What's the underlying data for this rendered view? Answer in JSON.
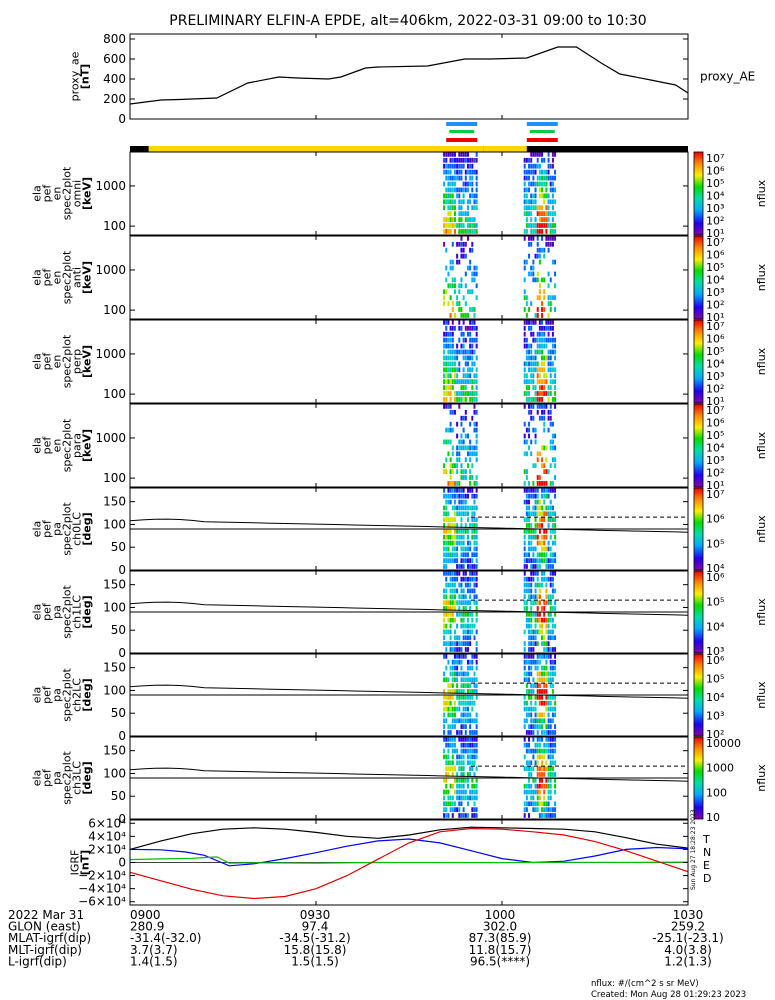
{
  "title": "PRELIMINARY ELFIN-A EPDE, alt=406km, 2022-03-31 09:00 to 10:30",
  "chart_data": {
    "type": "line",
    "time_range": [
      "09:00",
      "10:30"
    ],
    "x_ticks": [
      "0900",
      "0930",
      "1000",
      "1030"
    ],
    "x_tick_minutes": [
      0,
      30,
      60,
      90
    ],
    "panels": [
      {
        "kind": "line",
        "ylabel": [
          "proxy_ae",
          "[nT]"
        ],
        "ylim": [
          0,
          850
        ],
        "yticks": [
          0,
          200,
          400,
          600,
          800
        ],
        "legend": "proxy_AE",
        "series": [
          {
            "name": "proxy_AE",
            "x": [
              0,
              5,
              8,
              14,
              19,
              24,
              27,
              32,
              34,
              38,
              40,
              48,
              54,
              58,
              64,
              69,
              72,
              74,
              76,
              79,
              84,
              88,
              90
            ],
            "values": [
              150,
              190,
              195,
              210,
              360,
              420,
              410,
              400,
              420,
              510,
              520,
              530,
              600,
              600,
              610,
              720,
              720,
              640,
              560,
              450,
              390,
              340,
              260
            ]
          }
        ]
      },
      {
        "kind": "spectrogram",
        "ylabel": [
          "ela",
          "pef",
          "en",
          "spec2plot",
          "omni",
          "[keV]"
        ],
        "ylim": [
          60,
          7000
        ],
        "log": true,
        "yticks": [
          100,
          1000
        ],
        "ytick_labels": [
          "100",
          "1000"
        ],
        "colorbar": {
          "label": "nflux",
          "ticks": [
            "10⁷",
            "10⁶",
            "10⁵",
            "10⁴",
            "10³",
            "10²",
            "10¹"
          ]
        }
      },
      {
        "kind": "spectrogram",
        "ylabel": [
          "ela",
          "pef",
          "en",
          "spec2plot",
          "anti",
          "[keV]"
        ],
        "ylim": [
          60,
          7000
        ],
        "log": true,
        "yticks": [
          100,
          1000
        ],
        "ytick_labels": [
          "100",
          "1000"
        ],
        "colorbar": {
          "label": "nflux",
          "ticks": [
            "10⁷",
            "10⁶",
            "10⁵",
            "10⁴",
            "10³",
            "10²",
            "10¹"
          ]
        }
      },
      {
        "kind": "spectrogram",
        "ylabel": [
          "ela",
          "pef",
          "en",
          "spec2plot",
          "perp",
          "[keV]"
        ],
        "ylim": [
          60,
          7000
        ],
        "log": true,
        "yticks": [
          100,
          1000
        ],
        "ytick_labels": [
          "100",
          "1000"
        ],
        "colorbar": {
          "label": "nflux",
          "ticks": [
            "10⁷",
            "10⁶",
            "10⁵",
            "10⁴",
            "10³",
            "10²",
            "10¹"
          ]
        }
      },
      {
        "kind": "spectrogram",
        "ylabel": [
          "ela",
          "pef",
          "en",
          "spec2plot",
          "para",
          "[keV]"
        ],
        "ylim": [
          60,
          7000
        ],
        "log": true,
        "yticks": [
          100,
          1000
        ],
        "ytick_labels": [
          "100",
          "1000"
        ],
        "colorbar": {
          "label": "nflux",
          "ticks": [
            "10⁷",
            "10⁶",
            "10⁵",
            "10⁴",
            "10³",
            "10²",
            "10¹"
          ]
        }
      },
      {
        "kind": "pitch",
        "ylabel": [
          "ela",
          "pef",
          "pa",
          "spec2plot",
          "ch0LC",
          "[deg]"
        ],
        "ylim": [
          0,
          180
        ],
        "yticks": [
          0,
          50,
          100,
          150
        ],
        "colorbar": {
          "label": "nflux",
          "ticks": [
            "10⁷",
            "10⁶",
            "10⁵",
            "10⁴"
          ]
        }
      },
      {
        "kind": "pitch",
        "ylabel": [
          "ela",
          "pef",
          "pa",
          "spec2plot",
          "ch1LC",
          "[deg]"
        ],
        "ylim": [
          0,
          180
        ],
        "yticks": [
          0,
          50,
          100,
          150
        ],
        "colorbar": {
          "label": "nflux",
          "ticks": [
            "10⁶",
            "10⁵",
            "10⁴",
            "10³"
          ]
        }
      },
      {
        "kind": "pitch",
        "ylabel": [
          "ela",
          "pef",
          "pa",
          "spec2plot",
          "ch2LC",
          "[deg]"
        ],
        "ylim": [
          0,
          180
        ],
        "yticks": [
          0,
          50,
          100,
          150
        ],
        "colorbar": {
          "label": "nflux",
          "ticks": [
            "10⁶",
            "10⁵",
            "10⁴",
            "10³",
            "10²"
          ]
        }
      },
      {
        "kind": "pitch",
        "ylabel": [
          "ela",
          "pef",
          "pa",
          "spec2plot",
          "ch3LC",
          "[deg]"
        ],
        "ylim": [
          0,
          180
        ],
        "yticks": [
          0,
          50,
          100,
          150
        ],
        "colorbar": {
          "label": "nflux",
          "ticks": [
            "10000",
            "1000",
            "100",
            "10"
          ]
        }
      },
      {
        "kind": "lines",
        "ylabel": [
          "IGRF",
          "[nT]"
        ],
        "ylim": [
          -65000,
          65000
        ],
        "yticks": [
          -60000,
          -40000,
          -20000,
          0,
          20000,
          40000,
          60000
        ],
        "ytick_labels": [
          "−6×10⁴",
          "−4×10⁴",
          "−2×10⁴",
          "0",
          "2×10⁴",
          "4×10⁴",
          "6×10⁴"
        ],
        "series": [
          {
            "name": "T",
            "color": "#000000",
            "x": [
              0,
              5,
              10,
              15,
              20,
              25,
              30,
              35,
              40,
              45,
              50,
              55,
              60,
              65,
              70,
              75,
              80,
              85,
              90
            ],
            "values": [
              20000,
              33000,
              44000,
              51000,
              53000,
              51000,
              46000,
              40000,
              37000,
              42000,
              50000,
              54000,
              53000,
              52000,
              51000,
              47000,
              38000,
              28000,
              22000
            ]
          },
          {
            "name": "N",
            "color": "#0000ff",
            "x": [
              0,
              5,
              9,
              12,
              16,
              20,
              25,
              30,
              35,
              40,
              45,
              50,
              55,
              60,
              65,
              70,
              75,
              80,
              85,
              90
            ],
            "values": [
              20000,
              19500,
              16000,
              11000,
              -5000,
              -2000,
              6000,
              15000,
              25000,
              33000,
              36000,
              30000,
              18000,
              6000,
              0,
              2000,
              10000,
              20000,
              23000,
              21000
            ]
          },
          {
            "name": "E",
            "color": "#00c000",
            "x": [
              0,
              5,
              10,
              12,
              14,
              16,
              20,
              30,
              40,
              50,
              60,
              70,
              80,
              90
            ],
            "values": [
              4500,
              5500,
              6500,
              7500,
              8500,
              -1000,
              -400,
              -1100,
              0,
              0,
              -200,
              300,
              200,
              600
            ]
          },
          {
            "name": "D",
            "color": "#e00000",
            "x": [
              0,
              5,
              10,
              15,
              20,
              25,
              30,
              35,
              40,
              45,
              50,
              55,
              60,
              65,
              70,
              75,
              80,
              85,
              90
            ],
            "values": [
              -15000,
              -28000,
              -41000,
              -51000,
              -55000,
              -52000,
              -40000,
              -20000,
              5000,
              30000,
              47000,
              52000,
              51000,
              47000,
              42000,
              32000,
              18000,
              2000,
              -14000
            ]
          }
        ]
      }
    ],
    "orbit_table": {
      "rows": [
        {
          "label": "2022 Mar 31",
          "values": [
            "0900",
            "0930",
            "1000",
            "1030"
          ]
        },
        {
          "label": "GLON (east)",
          "values": [
            "280.9",
            "97.4",
            "302.0",
            "259.2"
          ]
        },
        {
          "label": "MLAT-igrf(dip)",
          "values": [
            "-31.4(-32.0)",
            "-34.5(-31.2)",
            "87.3(85.9)",
            "-25.1(-23.1)"
          ]
        },
        {
          "label": "MLT-igrf(dip)",
          "values": [
            "3.7(3.7)",
            "15.8(15.8)",
            "11.8(15.7)",
            "4.0(3.8)"
          ]
        },
        {
          "label": "L-igrf(dip)",
          "values": [
            "1.4(1.5)",
            "1.5(1.5)",
            "96.5(****)",
            "1.2(1.3)"
          ]
        }
      ]
    }
  },
  "footer": {
    "units": "nflux: #/(cm^2 s sr MeV)",
    "created": "Created: Mon Aug 28 01:29:23 2023"
  },
  "side_stamp": "Sun Aug 27 18:28:23 2023",
  "colors": {
    "yellow_bar": "#ffd700",
    "sci_bar_blue": "#1e90ff",
    "sci_bar_green": "#00cc44",
    "sci_bar_red": "#ee0000"
  }
}
